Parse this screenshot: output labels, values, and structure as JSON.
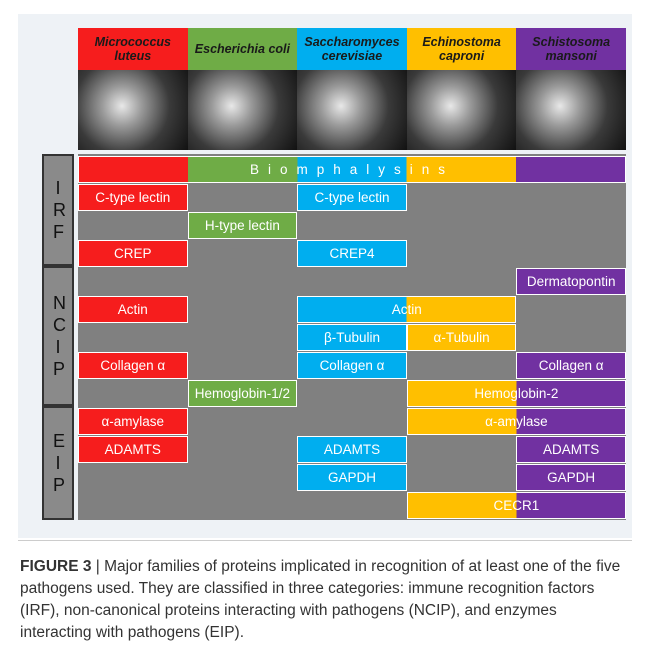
{
  "figure": {
    "pathogens": [
      {
        "name": "Micrococcus luteus",
        "color": "#f61d1d"
      },
      {
        "name": "Escherichia coli",
        "color": "#6fac46"
      },
      {
        "name": "Saccharomyces cerevisiae",
        "color": "#00aeef"
      },
      {
        "name": "Echinostoma caproni",
        "color": "#ffbf00"
      },
      {
        "name": "Schistosoma mansoni",
        "color": "#7131a1"
      }
    ],
    "categories": [
      {
        "label": "IRF",
        "rows": [
          [
            {
              "text": "Biomphalysins",
              "pathogens": [
                0,
                1,
                2,
                3,
                4
              ]
            }
          ],
          [
            {
              "text": "C-type lectin",
              "pathogens": [
                0
              ]
            },
            {
              "text": "C-type lectin",
              "pathogens": [
                2
              ]
            }
          ],
          [
            {
              "text": "H-type lectin",
              "pathogens": [
                1
              ]
            }
          ],
          [
            {
              "text": "CREP",
              "pathogens": [
                0
              ]
            },
            {
              "text": "CREP4",
              "pathogens": [
                2
              ]
            }
          ]
        ]
      },
      {
        "label": "NCIP",
        "rows": [
          [
            {
              "text": "Dermatopontin",
              "pathogens": [
                4
              ]
            }
          ],
          [
            {
              "text": "Actin",
              "pathogens": [
                0
              ]
            },
            {
              "text": "Actin",
              "pathogens": [
                2,
                3
              ]
            }
          ],
          [
            {
              "text": "β-Tubulin",
              "pathogens": [
                2
              ]
            },
            {
              "text": "α-Tubulin",
              "pathogens": [
                3
              ]
            }
          ],
          [
            {
              "text": "Collagen α",
              "pathogens": [
                0
              ]
            },
            {
              "text": "Collagen α",
              "pathogens": [
                2
              ]
            },
            {
              "text": "Collagen α",
              "pathogens": [
                4
              ]
            }
          ],
          [
            {
              "text": "Hemoglobin-1/2",
              "pathogens": [
                1
              ]
            },
            {
              "text": "Hemoglobin-2",
              "pathogens": [
                3,
                4
              ]
            }
          ]
        ]
      },
      {
        "label": "EIP",
        "rows": [
          [
            {
              "text": "α-amylase",
              "pathogens": [
                0
              ]
            },
            {
              "text": "α-amylase",
              "pathogens": [
                3,
                4
              ]
            }
          ],
          [
            {
              "text": "ADAMTS",
              "pathogens": [
                0
              ]
            },
            {
              "text": "ADAMTS",
              "pathogens": [
                2
              ]
            },
            {
              "text": "ADAMTS",
              "pathogens": [
                4
              ]
            }
          ],
          [
            {
              "text": "GAPDH",
              "pathogens": [
                2
              ]
            },
            {
              "text": "GAPDH",
              "pathogens": [
                4
              ]
            }
          ],
          [
            {
              "text": "CECR1",
              "pathogens": [
                3,
                4
              ]
            }
          ]
        ]
      }
    ]
  },
  "caption": {
    "label": "FIGURE 3",
    "text": "| Major families of proteins implicated in recognition of at least one of the five pathogens used. They are classified in three categories: immune recognition factors (IRF), non-canonical proteins interacting with pathogens (NCIP), and enzymes interacting with pathogens (EIP)."
  }
}
